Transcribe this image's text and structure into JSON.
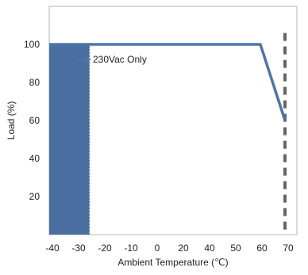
{
  "chart_data": {
    "type": "line",
    "xlabel": "Ambient Temperature (℃)",
    "ylabel": "Load (%)",
    "x_ticks": [
      "-40",
      "-30",
      "-20",
      "-10",
      "0",
      "20",
      "40",
      "50",
      "60",
      "70"
    ],
    "y_ticks": [
      "20",
      "40",
      "60",
      "80",
      "100"
    ],
    "ylim": [
      0,
      120
    ],
    "grid": false,
    "series": [
      {
        "points": [
          {
            "x": "-40",
            "y": 100
          },
          {
            "x": "-30",
            "y": 100
          },
          {
            "x": "-20",
            "y": 100
          },
          {
            "x": "-10",
            "y": 100
          },
          {
            "x": "0",
            "y": 100
          },
          {
            "x": "20",
            "y": 100
          },
          {
            "x": "40",
            "y": 100
          },
          {
            "x": "50",
            "y": 100
          },
          {
            "x": "60",
            "y": 100
          },
          {
            "x": "70",
            "y": 60
          }
        ],
        "color": "#4a76ab"
      }
    ],
    "shaded_region": {
      "from": "-40",
      "to": "-30",
      "color": "#4a6ea0"
    },
    "limit_line": {
      "x": "70",
      "color": "#666666",
      "style": "dashed"
    },
    "annotation": {
      "text": "230Vac Only",
      "color": "#4a76ab"
    }
  }
}
